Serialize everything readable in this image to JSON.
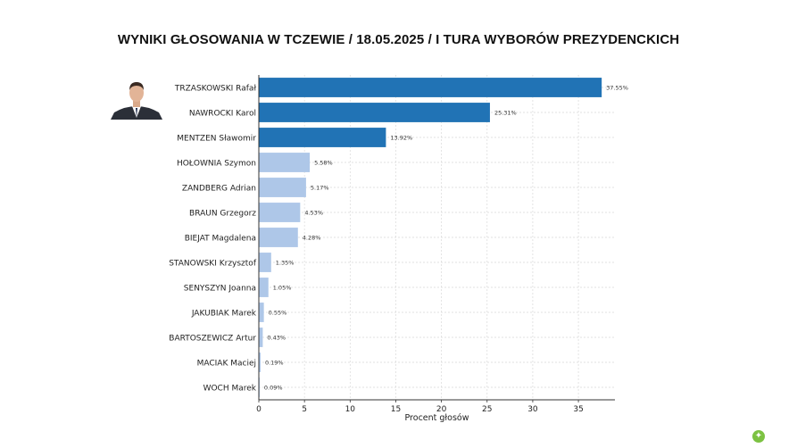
{
  "page": {
    "title": "WYNIKI GŁOSOWANIA W TCZEWIE / 18.05.2025 / I TURA WYBORÓW PREZYDENCKICH"
  },
  "colors": {
    "top3": "#2173b5",
    "others": "#aec7e8",
    "grid": "#d9d9d9",
    "axis": "#333333",
    "logo": "#7cc242"
  },
  "icons": {
    "avatar": "candidate-portrait",
    "logo": "leaf-logo"
  },
  "chart_data": {
    "type": "bar",
    "orientation": "horizontal",
    "title": "",
    "xlabel": "Procent głosów",
    "ylabel": "",
    "xlim": [
      0,
      39
    ],
    "xticks": [
      0,
      5,
      10,
      15,
      20,
      25,
      30,
      35
    ],
    "grid": "on",
    "highlight_top": 3,
    "categories": [
      "TRZASKOWSKI Rafał",
      "NAWROCKI Karol",
      "MENTZEN Sławomir",
      "HOŁOWNIA Szymon",
      "ZANDBERG Adrian",
      "BRAUN Grzegorz",
      "BIEJAT Magdalena",
      "STANOWSKI Krzysztof",
      "SENYSZYN Joanna",
      "JAKUBIAK Marek",
      "BARTOSZEWICZ Artur",
      "MACIAK Maciej",
      "WOCH Marek"
    ],
    "values": [
      37.55,
      25.31,
      13.92,
      5.58,
      5.17,
      4.53,
      4.28,
      1.35,
      1.05,
      0.55,
      0.43,
      0.19,
      0.09
    ],
    "data_labels": [
      "37.55%",
      "25.31%",
      "13.92%",
      "5.58%",
      "5.17%",
      "4.53%",
      "4.28%",
      "1.35%",
      "1.05%",
      "0.55%",
      "0.43%",
      "0.19%",
      "0.09%"
    ]
  }
}
